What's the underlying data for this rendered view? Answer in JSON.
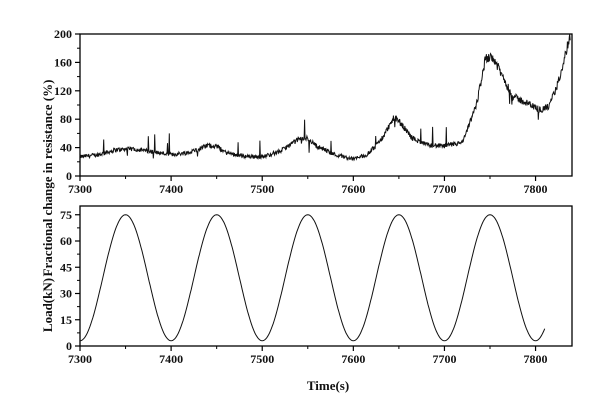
{
  "chart_data": [
    {
      "type": "line",
      "title": "",
      "xlabel": "",
      "ylabel": "Fractional change in resistance (%)",
      "xlim": [
        7300,
        7840
      ],
      "ylim": [
        0,
        200
      ],
      "xticks": [
        "7300",
        "7400",
        "7500",
        "7600",
        "7700",
        "7800"
      ],
      "yticks": [
        "0",
        "40",
        "80",
        "120",
        "160",
        "200"
      ],
      "grid": false,
      "series": [
        {
          "x": [
            7300,
            7320,
            7340,
            7360,
            7380,
            7400,
            7420,
            7440,
            7450,
            7460,
            7480,
            7500,
            7520,
            7540,
            7550,
            7560,
            7580,
            7600,
            7615,
            7630,
            7645,
            7652,
            7665,
            7680,
            7700,
            7720,
            7735,
            7745,
            7752,
            7760,
            7775,
            7790,
            7805,
            7815,
            7825,
            7838
          ],
          "y": [
            27,
            30,
            37,
            38,
            34,
            30,
            33,
            43,
            42,
            33,
            28,
            27,
            35,
            52,
            53,
            42,
            30,
            24,
            30,
            50,
            83,
            74,
            53,
            44,
            42,
            47,
            100,
            165,
            170,
            150,
            112,
            103,
            93,
            98,
            132,
            198
          ]
        }
      ]
    },
    {
      "type": "line",
      "title": "",
      "xlabel": "Time(s)",
      "ylabel": "Load(kN)",
      "xlim": [
        7300,
        7840
      ],
      "ylim": [
        0,
        80
      ],
      "xticks": [
        "7300",
        "7400",
        "7500",
        "7600",
        "7700",
        "7800"
      ],
      "yticks": [
        "0",
        "15",
        "30",
        "45",
        "60",
        "75"
      ],
      "grid": false,
      "series": [
        {
          "function": "sine",
          "period": 100,
          "min": 3,
          "max": 75,
          "peaks_x": [
            7350,
            7450,
            7550,
            7650,
            7750
          ],
          "troughs_x": [
            7300,
            7400,
            7500,
            7600,
            7700,
            7800
          ],
          "x_end": 7810,
          "y_end": 13
        }
      ]
    }
  ]
}
